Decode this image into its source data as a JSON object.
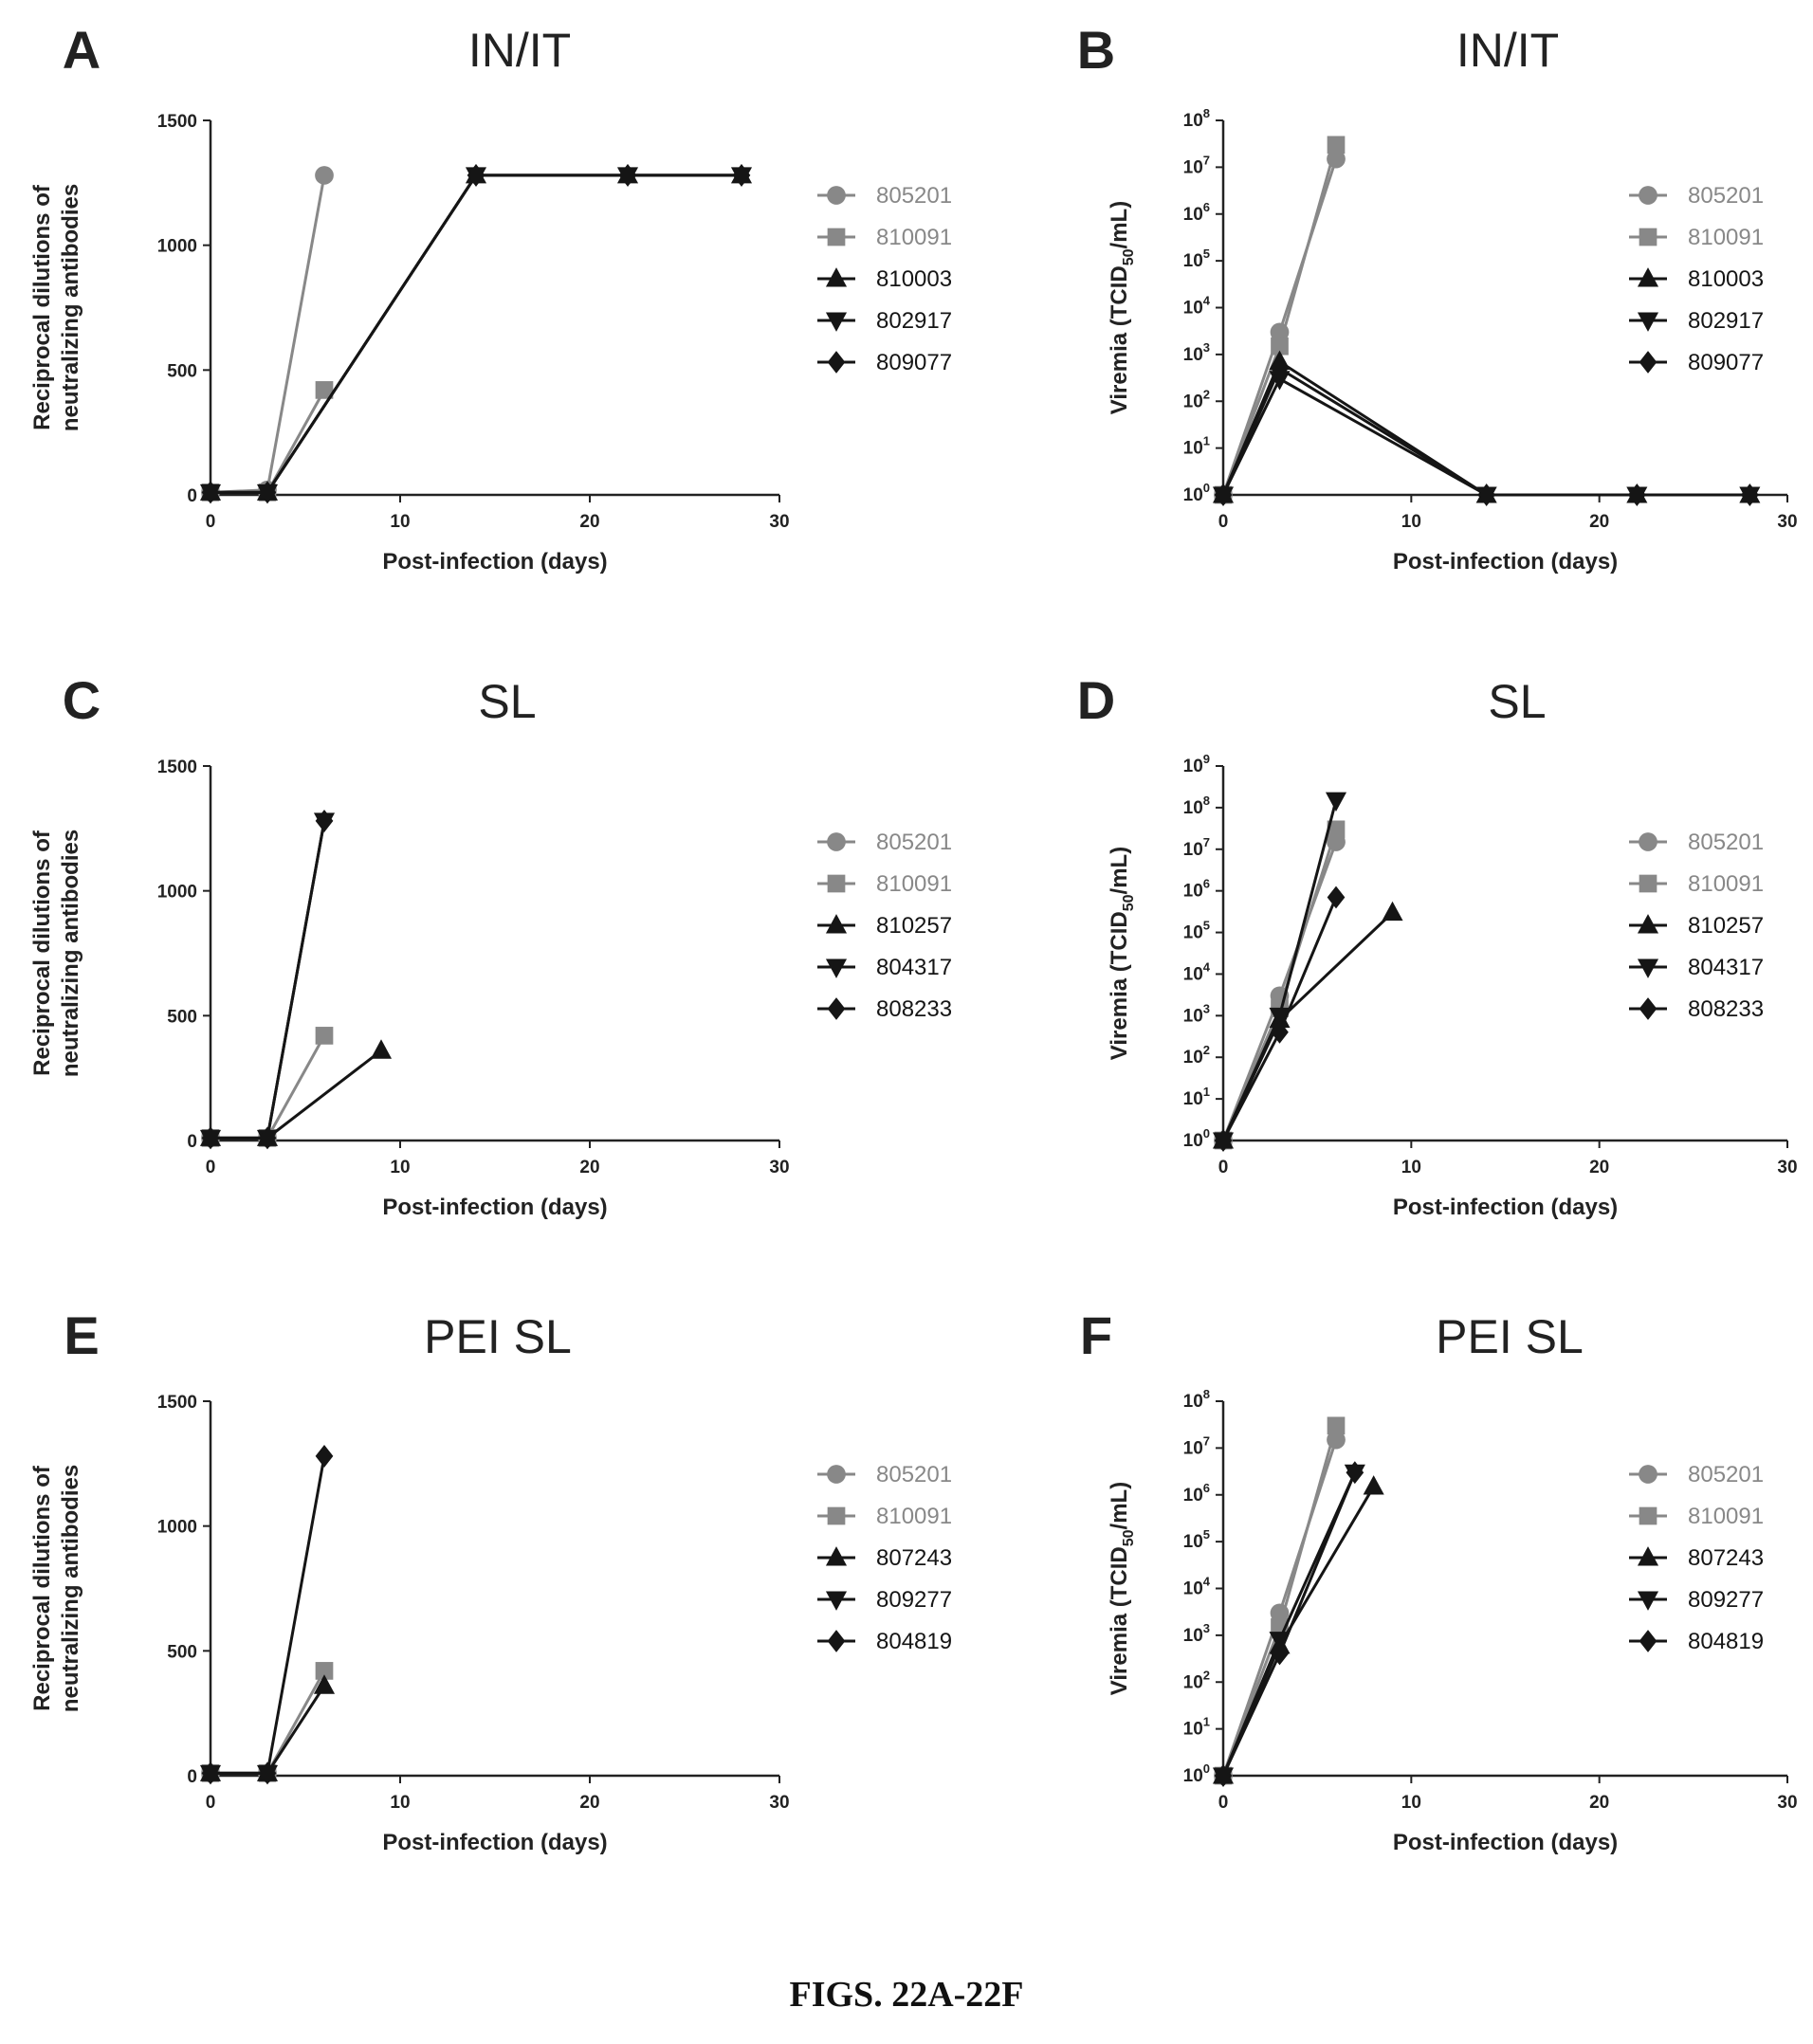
{
  "figure_caption": "FIGS. 22A-22F",
  "colors": {
    "gray": "#888888",
    "dark": "#151515"
  },
  "chart_data": [
    {
      "panel": "A",
      "title": "IN/IT",
      "type": "line",
      "ylabel": [
        "Reciprocal dilutions of",
        "neutralizing antibodies"
      ],
      "xlabel": "Post-infection (days)",
      "xlim": [
        0,
        30
      ],
      "xticks": [
        0,
        10,
        20,
        30
      ],
      "ylim": [
        0,
        1500
      ],
      "yticks": [
        0,
        500,
        1000,
        1500
      ],
      "log": false,
      "series": [
        {
          "name": "805201",
          "marker": "circle",
          "color": "gray",
          "x": [
            0,
            3,
            6
          ],
          "y": [
            10,
            20,
            1280
          ]
        },
        {
          "name": "810091",
          "marker": "square",
          "color": "gray",
          "x": [
            0,
            3,
            6
          ],
          "y": [
            10,
            10,
            420
          ]
        },
        {
          "name": "810003",
          "marker": "triangle-up",
          "color": "dark",
          "x": [
            0,
            3,
            14,
            22,
            28
          ],
          "y": [
            10,
            10,
            1280,
            1280,
            1280
          ]
        },
        {
          "name": "802917",
          "marker": "triangle-down",
          "color": "dark",
          "x": [
            0,
            3,
            14,
            22,
            28
          ],
          "y": [
            10,
            10,
            1280,
            1280,
            1280
          ]
        },
        {
          "name": "809077",
          "marker": "diamond",
          "color": "dark",
          "x": [
            0,
            3,
            14,
            22,
            28
          ],
          "y": [
            10,
            10,
            1280,
            1280,
            1280
          ]
        }
      ]
    },
    {
      "panel": "B",
      "title": "IN/IT",
      "type": "line",
      "ylabel": [
        "Viremia (TCID",
        "50",
        "/mL)"
      ],
      "xlabel": "Post-infection (days)",
      "xlim": [
        0,
        30
      ],
      "xticks": [
        0,
        10,
        20,
        30
      ],
      "ylim": [
        0,
        8
      ],
      "yticks": [
        0,
        1,
        2,
        3,
        4,
        5,
        6,
        7,
        8
      ],
      "log": true,
      "series": [
        {
          "name": "805201",
          "marker": "circle",
          "color": "gray",
          "x": [
            0,
            3,
            6
          ],
          "y": [
            1,
            3000,
            15000000
          ]
        },
        {
          "name": "810091",
          "marker": "square",
          "color": "gray",
          "x": [
            0,
            3,
            6
          ],
          "y": [
            1,
            1500,
            30000000
          ]
        },
        {
          "name": "810003",
          "marker": "triangle-up",
          "color": "dark",
          "x": [
            0,
            3,
            14,
            22,
            28
          ],
          "y": [
            1,
            700,
            1,
            1,
            1
          ]
        },
        {
          "name": "802917",
          "marker": "triangle-down",
          "color": "dark",
          "x": [
            0,
            3,
            14,
            22,
            28
          ],
          "y": [
            1,
            300,
            1,
            1,
            1
          ]
        },
        {
          "name": "809077",
          "marker": "diamond",
          "color": "dark",
          "x": [
            0,
            3,
            14,
            22,
            28
          ],
          "y": [
            1,
            500,
            1,
            1,
            1
          ]
        }
      ]
    },
    {
      "panel": "C",
      "title": "SL",
      "type": "line",
      "ylabel": [
        "Reciprocal dilutions of",
        "neutralizing antibodies"
      ],
      "xlabel": "Post-infection (days)",
      "xlim": [
        0,
        30
      ],
      "xticks": [
        0,
        10,
        20,
        30
      ],
      "ylim": [
        0,
        1500
      ],
      "yticks": [
        0,
        500,
        1000,
        1500
      ],
      "log": false,
      "series": [
        {
          "name": "805201",
          "marker": "circle",
          "color": "gray",
          "x": [
            0,
            3
          ],
          "y": [
            10,
            10
          ]
        },
        {
          "name": "810091",
          "marker": "square",
          "color": "gray",
          "x": [
            0,
            3,
            6
          ],
          "y": [
            10,
            10,
            420
          ]
        },
        {
          "name": "810257",
          "marker": "triangle-up",
          "color": "dark",
          "x": [
            0,
            3,
            9
          ],
          "y": [
            10,
            10,
            360
          ]
        },
        {
          "name": "804317",
          "marker": "triangle-down",
          "color": "dark",
          "x": [
            0,
            3,
            6
          ],
          "y": [
            10,
            10,
            1280
          ]
        },
        {
          "name": "808233",
          "marker": "diamond",
          "color": "dark",
          "x": [
            0,
            3,
            6
          ],
          "y": [
            10,
            10,
            1280
          ]
        }
      ]
    },
    {
      "panel": "D",
      "title": "SL",
      "type": "line",
      "ylabel": [
        "Viremia (TCID",
        "50",
        "/mL)"
      ],
      "xlabel": "Post-infection (days)",
      "xlim": [
        0,
        30
      ],
      "xticks": [
        0,
        10,
        20,
        30
      ],
      "ylim": [
        0,
        9
      ],
      "yticks": [
        0,
        1,
        2,
        3,
        4,
        5,
        6,
        7,
        8,
        9
      ],
      "log": true,
      "series": [
        {
          "name": "805201",
          "marker": "circle",
          "color": "gray",
          "x": [
            0,
            3,
            6
          ],
          "y": [
            1,
            3000,
            15000000
          ]
        },
        {
          "name": "810091",
          "marker": "square",
          "color": "gray",
          "x": [
            0,
            3,
            6
          ],
          "y": [
            1,
            1500,
            30000000
          ]
        },
        {
          "name": "810257",
          "marker": "triangle-up",
          "color": "dark",
          "x": [
            0,
            3,
            9
          ],
          "y": [
            1,
            800,
            300000
          ]
        },
        {
          "name": "804317",
          "marker": "triangle-down",
          "color": "dark",
          "x": [
            0,
            3,
            6
          ],
          "y": [
            1,
            1000,
            150000000
          ]
        },
        {
          "name": "808233",
          "marker": "diamond",
          "color": "dark",
          "x": [
            0,
            3,
            6
          ],
          "y": [
            1,
            400,
            700000
          ]
        }
      ]
    },
    {
      "panel": "E",
      "title": "PEI SL",
      "type": "line",
      "ylabel": [
        "Reciprocal dilutions of",
        "neutralizing antibodies"
      ],
      "xlabel": "Post-infection (days)",
      "xlim": [
        0,
        30
      ],
      "xticks": [
        0,
        10,
        20,
        30
      ],
      "ylim": [
        0,
        1500
      ],
      "yticks": [
        0,
        500,
        1000,
        1500
      ],
      "log": false,
      "series": [
        {
          "name": "805201",
          "marker": "circle",
          "color": "gray",
          "x": [
            0,
            3
          ],
          "y": [
            10,
            10
          ]
        },
        {
          "name": "810091",
          "marker": "square",
          "color": "gray",
          "x": [
            0,
            3,
            6
          ],
          "y": [
            10,
            10,
            420
          ]
        },
        {
          "name": "807243",
          "marker": "triangle-up",
          "color": "dark",
          "x": [
            0,
            3,
            6
          ],
          "y": [
            10,
            10,
            360
          ]
        },
        {
          "name": "809277",
          "marker": "triangle-down",
          "color": "dark",
          "x": [
            0,
            3
          ],
          "y": [
            10,
            10
          ]
        },
        {
          "name": "804819",
          "marker": "diamond",
          "color": "dark",
          "x": [
            0,
            3,
            6
          ],
          "y": [
            10,
            10,
            1280
          ]
        }
      ]
    },
    {
      "panel": "F",
      "title": "PEI SL",
      "type": "line",
      "ylabel": [
        "Viremia (TCID",
        "50",
        "/mL)"
      ],
      "xlabel": "Post-infection (days)",
      "xlim": [
        0,
        30
      ],
      "xticks": [
        0,
        10,
        20,
        30
      ],
      "ylim": [
        0,
        8
      ],
      "yticks": [
        0,
        1,
        2,
        3,
        4,
        5,
        6,
        7,
        8
      ],
      "log": true,
      "series": [
        {
          "name": "805201",
          "marker": "circle",
          "color": "gray",
          "x": [
            0,
            3,
            6
          ],
          "y": [
            1,
            3000,
            15000000
          ]
        },
        {
          "name": "810091",
          "marker": "square",
          "color": "gray",
          "x": [
            0,
            3,
            6
          ],
          "y": [
            1,
            1500,
            30000000
          ]
        },
        {
          "name": "807243",
          "marker": "triangle-up",
          "color": "dark",
          "x": [
            0,
            3,
            8
          ],
          "y": [
            1,
            600,
            1500000
          ]
        },
        {
          "name": "809277",
          "marker": "triangle-down",
          "color": "dark",
          "x": [
            0,
            3,
            7
          ],
          "y": [
            1,
            800,
            3000000
          ]
        },
        {
          "name": "804819",
          "marker": "diamond",
          "color": "dark",
          "x": [
            0,
            3,
            7
          ],
          "y": [
            1,
            400,
            3000000
          ]
        }
      ]
    }
  ]
}
